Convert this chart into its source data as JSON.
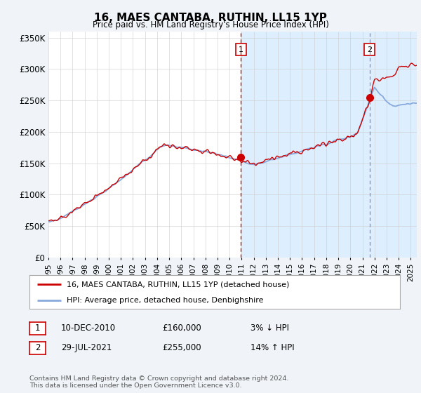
{
  "title": "16, MAES CANTABA, RUTHIN, LL15 1YP",
  "subtitle": "Price paid vs. HM Land Registry's House Price Index (HPI)",
  "ylim": [
    0,
    360000
  ],
  "yticks": [
    0,
    50000,
    100000,
    150000,
    200000,
    250000,
    300000,
    350000
  ],
  "ytick_labels": [
    "£0",
    "£50K",
    "£100K",
    "£150K",
    "£200K",
    "£250K",
    "£300K",
    "£350K"
  ],
  "background_color": "#f0f4f8",
  "plot_bg_color": "#ffffff",
  "shaded_region_color": "#ddeeff",
  "hpi_color": "#88aadd",
  "price_color": "#cc0000",
  "transaction1_date_num": 2010.94,
  "transaction1_price": 160000,
  "transaction1_label": "1",
  "transaction2_date_num": 2021.58,
  "transaction2_price": 255000,
  "transaction2_label": "2",
  "legend_property": "16, MAES CANTABA, RUTHIN, LL15 1YP (detached house)",
  "legend_hpi": "HPI: Average price, detached house, Denbighshire",
  "annotation1_date": "10-DEC-2010",
  "annotation1_price": "£160,000",
  "annotation1_pct": "3% ↓ HPI",
  "annotation2_date": "29-JUL-2021",
  "annotation2_price": "£255,000",
  "annotation2_pct": "14% ↑ HPI",
  "footer": "Contains HM Land Registry data © Crown copyright and database right 2024.\nThis data is licensed under the Open Government Licence v3.0.",
  "xmin": 1995.0,
  "xmax": 2025.5
}
